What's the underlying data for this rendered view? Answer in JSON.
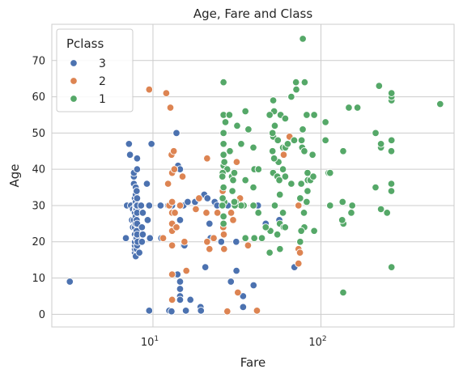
{
  "chart_data": {
    "type": "scatter",
    "title": "Age, Fare and Class",
    "xlabel": "Fare",
    "ylabel": "Age",
    "xscale": "log",
    "xlim": [
      2.5,
      620
    ],
    "ylim": [
      -3.5,
      80
    ],
    "x_ticks": [
      {
        "value": 10,
        "base": "10",
        "exp": "1"
      },
      {
        "value": 100,
        "base": "10",
        "exp": "2"
      }
    ],
    "y_ticks": [
      0,
      10,
      20,
      30,
      40,
      50,
      60,
      70
    ],
    "grid": true,
    "legend": {
      "title": "Pclass",
      "position": "top-left"
    },
    "series": [
      {
        "name": "3",
        "color": "#4c72b0",
        "points": [
          [
            3.2,
            9
          ],
          [
            6.9,
            21
          ],
          [
            7.0,
            30
          ],
          [
            7.2,
            47
          ],
          [
            7.3,
            44
          ],
          [
            7.4,
            30
          ],
          [
            7.5,
            26
          ],
          [
            7.6,
            24
          ],
          [
            7.6,
            29
          ],
          [
            7.7,
            36
          ],
          [
            7.7,
            38
          ],
          [
            7.7,
            39
          ],
          [
            7.7,
            26
          ],
          [
            7.8,
            32
          ],
          [
            7.8,
            17
          ],
          [
            7.8,
            18
          ],
          [
            7.8,
            19
          ],
          [
            7.8,
            20
          ],
          [
            7.8,
            22
          ],
          [
            7.8,
            24
          ],
          [
            7.8,
            28
          ],
          [
            7.9,
            16
          ],
          [
            7.9,
            21
          ],
          [
            7.9,
            25
          ],
          [
            7.9,
            27
          ],
          [
            7.9,
            29
          ],
          [
            7.9,
            30
          ],
          [
            7.9,
            31
          ],
          [
            7.9,
            33
          ],
          [
            7.9,
            35
          ],
          [
            8.0,
            18
          ],
          [
            8.0,
            21
          ],
          [
            8.0,
            23
          ],
          [
            8.0,
            26
          ],
          [
            8.0,
            29
          ],
          [
            8.0,
            30
          ],
          [
            8.0,
            34
          ],
          [
            8.05,
            19
          ],
          [
            8.05,
            22
          ],
          [
            8.05,
            25
          ],
          [
            8.05,
            28
          ],
          [
            8.05,
            30
          ],
          [
            8.05,
            32
          ],
          [
            8.05,
            40
          ],
          [
            8.05,
            43
          ],
          [
            8.1,
            20
          ],
          [
            8.3,
            17
          ],
          [
            8.5,
            30
          ],
          [
            8.6,
            20
          ],
          [
            8.6,
            24
          ],
          [
            8.7,
            22
          ],
          [
            8.7,
            28
          ],
          [
            9.2,
            36
          ],
          [
            9.3,
            26
          ],
          [
            9.5,
            30
          ],
          [
            9.5,
            1
          ],
          [
            9.6,
            21
          ],
          [
            9.8,
            47
          ],
          [
            11.1,
            30
          ],
          [
            11.2,
            21
          ],
          [
            12.3,
            30
          ],
          [
            12.5,
            1
          ],
          [
            12.9,
            0.8
          ],
          [
            13.0,
            30
          ],
          [
            13.4,
            24
          ],
          [
            13.8,
            50
          ],
          [
            14.0,
            11
          ],
          [
            14.1,
            41
          ],
          [
            14.4,
            30
          ],
          [
            14.5,
            26
          ],
          [
            14.5,
            30
          ],
          [
            14.5,
            40
          ],
          [
            14.5,
            9
          ],
          [
            14.5,
            7
          ],
          [
            14.5,
            5
          ],
          [
            14.5,
            4
          ],
          [
            15.2,
            19
          ],
          [
            15.2,
            30
          ],
          [
            15.4,
            19
          ],
          [
            15.7,
            1
          ],
          [
            16.1,
            31
          ],
          [
            16.7,
            4
          ],
          [
            17.8,
            31
          ],
          [
            19.2,
            2
          ],
          [
            19.3,
            1
          ],
          [
            20.2,
            33
          ],
          [
            20.5,
            13
          ],
          [
            21.1,
            32
          ],
          [
            21.7,
            25
          ],
          [
            22.0,
            21
          ],
          [
            23.3,
            31
          ],
          [
            24.1,
            30
          ],
          [
            25.5,
            20
          ],
          [
            27.9,
            30
          ],
          [
            29.1,
            9
          ],
          [
            31.3,
            20
          ],
          [
            31.4,
            12
          ],
          [
            34.4,
            2
          ],
          [
            34.4,
            5
          ],
          [
            39.7,
            8
          ],
          [
            42.2,
            30
          ],
          [
            46.9,
            25
          ],
          [
            56.5,
            26
          ],
          [
            69.5,
            13
          ]
        ]
      },
      {
        "name": "2",
        "color": "#dd8452",
        "points": [
          [
            9.5,
            62
          ],
          [
            11.5,
            21
          ],
          [
            12.0,
            61
          ],
          [
            12.3,
            36
          ],
          [
            12.5,
            30
          ],
          [
            12.7,
            57
          ],
          [
            12.9,
            44
          ],
          [
            13.0,
            39
          ],
          [
            13.0,
            31
          ],
          [
            13.0,
            28
          ],
          [
            13.0,
            25
          ],
          [
            13.0,
            23
          ],
          [
            13.0,
            19
          ],
          [
            13.0,
            11
          ],
          [
            13.0,
            4
          ],
          [
            13.3,
            45
          ],
          [
            13.4,
            40
          ],
          [
            13.5,
            28
          ],
          [
            13.8,
            24
          ],
          [
            14.5,
            30
          ],
          [
            15.0,
            38
          ],
          [
            15.4,
            20
          ],
          [
            15.8,
            12
          ],
          [
            18.0,
            29
          ],
          [
            18.8,
            32
          ],
          [
            20.8,
            28
          ],
          [
            21.0,
            43
          ],
          [
            21.0,
            20
          ],
          [
            21.7,
            18
          ],
          [
            23.0,
            21
          ],
          [
            24.2,
            28
          ],
          [
            26.0,
            39
          ],
          [
            26.0,
            34
          ],
          [
            26.2,
            24
          ],
          [
            26.4,
            22
          ],
          [
            26.5,
            18
          ],
          [
            27.0,
            40
          ],
          [
            27.7,
            0.8
          ],
          [
            29.0,
            45
          ],
          [
            29.2,
            28
          ],
          [
            30.0,
            26
          ],
          [
            31.5,
            42
          ],
          [
            32.0,
            6
          ],
          [
            33.0,
            32
          ],
          [
            36.8,
            19
          ],
          [
            41.6,
            1
          ],
          [
            60.0,
            44
          ],
          [
            65.0,
            49
          ],
          [
            73.5,
            30
          ],
          [
            73.5,
            14
          ],
          [
            73.5,
            18
          ],
          [
            75.0,
            17
          ]
        ]
      },
      {
        "name": "1",
        "color": "#55a868",
        "points": [
          [
            26.3,
            64
          ],
          [
            26.3,
            55
          ],
          [
            26.3,
            50
          ],
          [
            26.3,
            47
          ],
          [
            26.3,
            44
          ],
          [
            26.3,
            41
          ],
          [
            26.3,
            35
          ],
          [
            26.3,
            31
          ],
          [
            26.3,
            27
          ],
          [
            26.3,
            25
          ],
          [
            27.0,
            53
          ],
          [
            28.5,
            55
          ],
          [
            29.5,
            38
          ],
          [
            30.0,
            37
          ],
          [
            30.5,
            39
          ],
          [
            30.7,
            30
          ],
          [
            31.0,
            31
          ],
          [
            33.5,
            47
          ],
          [
            35.5,
            56
          ],
          [
            37.0,
            51
          ],
          [
            39.6,
            30
          ],
          [
            39.6,
            35
          ],
          [
            40.1,
            40
          ],
          [
            42.4,
            28
          ],
          [
            44.5,
            21
          ],
          [
            49.5,
            17
          ],
          [
            50.0,
            23
          ],
          [
            51.9,
            39
          ],
          [
            52.0,
            59
          ],
          [
            52.0,
            49
          ],
          [
            53.1,
            30
          ],
          [
            55.0,
            38
          ],
          [
            55.4,
            48
          ],
          [
            56.9,
            25
          ],
          [
            57.0,
            18
          ],
          [
            57.5,
            55
          ],
          [
            59.4,
            46
          ],
          [
            60.0,
            24
          ],
          [
            61.2,
            24
          ],
          [
            61.4,
            46
          ],
          [
            63.4,
            47
          ],
          [
            66.6,
            36
          ],
          [
            71.0,
            64
          ],
          [
            76.7,
            48
          ],
          [
            77.3,
            46
          ],
          [
            78.0,
            76
          ],
          [
            79.2,
            28
          ],
          [
            80.0,
            64
          ],
          [
            82.2,
            55
          ],
          [
            83.2,
            34
          ],
          [
            83.5,
            37
          ],
          [
            86.5,
            37
          ],
          [
            91.1,
            55
          ],
          [
            91.1,
            23
          ],
          [
            106.4,
            48
          ],
          [
            110.9,
            39
          ],
          [
            134.5,
            31
          ],
          [
            135.6,
            45
          ],
          [
            136.0,
            25
          ],
          [
            146.5,
            57
          ],
          [
            151.5,
            28
          ],
          [
            153.5,
            30
          ],
          [
            164.9,
            57
          ],
          [
            211.3,
            35
          ],
          [
            211.5,
            50
          ],
          [
            221.8,
            63
          ],
          [
            227.5,
            29
          ],
          [
            227.5,
            46
          ],
          [
            227.5,
            47
          ],
          [
            247.5,
            28
          ],
          [
            262.4,
            34
          ],
          [
            262.4,
            36
          ],
          [
            262.4,
            45
          ],
          [
            263.0,
            59
          ],
          [
            263.0,
            48
          ],
          [
            263.0,
            60
          ],
          [
            263.0,
            61
          ],
          [
            263.0,
            13
          ],
          [
            512.3,
            58
          ],
          [
            135.6,
            6
          ],
          [
            133.7,
            26
          ],
          [
            113.3,
            39
          ],
          [
            113.3,
            30
          ],
          [
            106.4,
            53
          ],
          [
            90.0,
            38
          ],
          [
            89.1,
            44
          ],
          [
            83.2,
            39
          ],
          [
            82.2,
            31
          ],
          [
            79.6,
            45
          ],
          [
            79.6,
            24
          ],
          [
            77.9,
            51
          ],
          [
            76.3,
            36
          ],
          [
            76.3,
            23
          ],
          [
            75.2,
            32
          ],
          [
            75.2,
            20
          ],
          [
            71.3,
            62
          ],
          [
            69.3,
            48
          ],
          [
            66.6,
            60
          ],
          [
            61.3,
            38
          ],
          [
            61.3,
            54
          ],
          [
            59.4,
            40
          ],
          [
            59.4,
            28
          ],
          [
            56.9,
            33
          ],
          [
            56.5,
            37
          ],
          [
            55.9,
            42
          ],
          [
            55.0,
            22
          ],
          [
            53.1,
            52
          ],
          [
            52.6,
            56
          ],
          [
            52.6,
            43
          ],
          [
            51.5,
            45
          ],
          [
            51.5,
            50
          ],
          [
            49.5,
            55
          ],
          [
            46.9,
            24
          ],
          [
            42.5,
            40
          ],
          [
            40.1,
            21
          ],
          [
            39.6,
            46
          ],
          [
            35.5,
            21
          ],
          [
            35.5,
            37
          ],
          [
            34.7,
            30
          ],
          [
            33.5,
            30
          ],
          [
            31.7,
            52
          ],
          [
            30.7,
            30
          ],
          [
            30.5,
            31
          ],
          [
            29.7,
            34
          ],
          [
            28.7,
            45
          ],
          [
            27.7,
            40
          ],
          [
            26.6,
            42
          ],
          [
            26.6,
            31
          ],
          [
            26.0,
            32
          ],
          [
            26.0,
            39
          ],
          [
            25.9,
            38
          ],
          [
            25.9,
            30
          ]
        ]
      }
    ]
  }
}
